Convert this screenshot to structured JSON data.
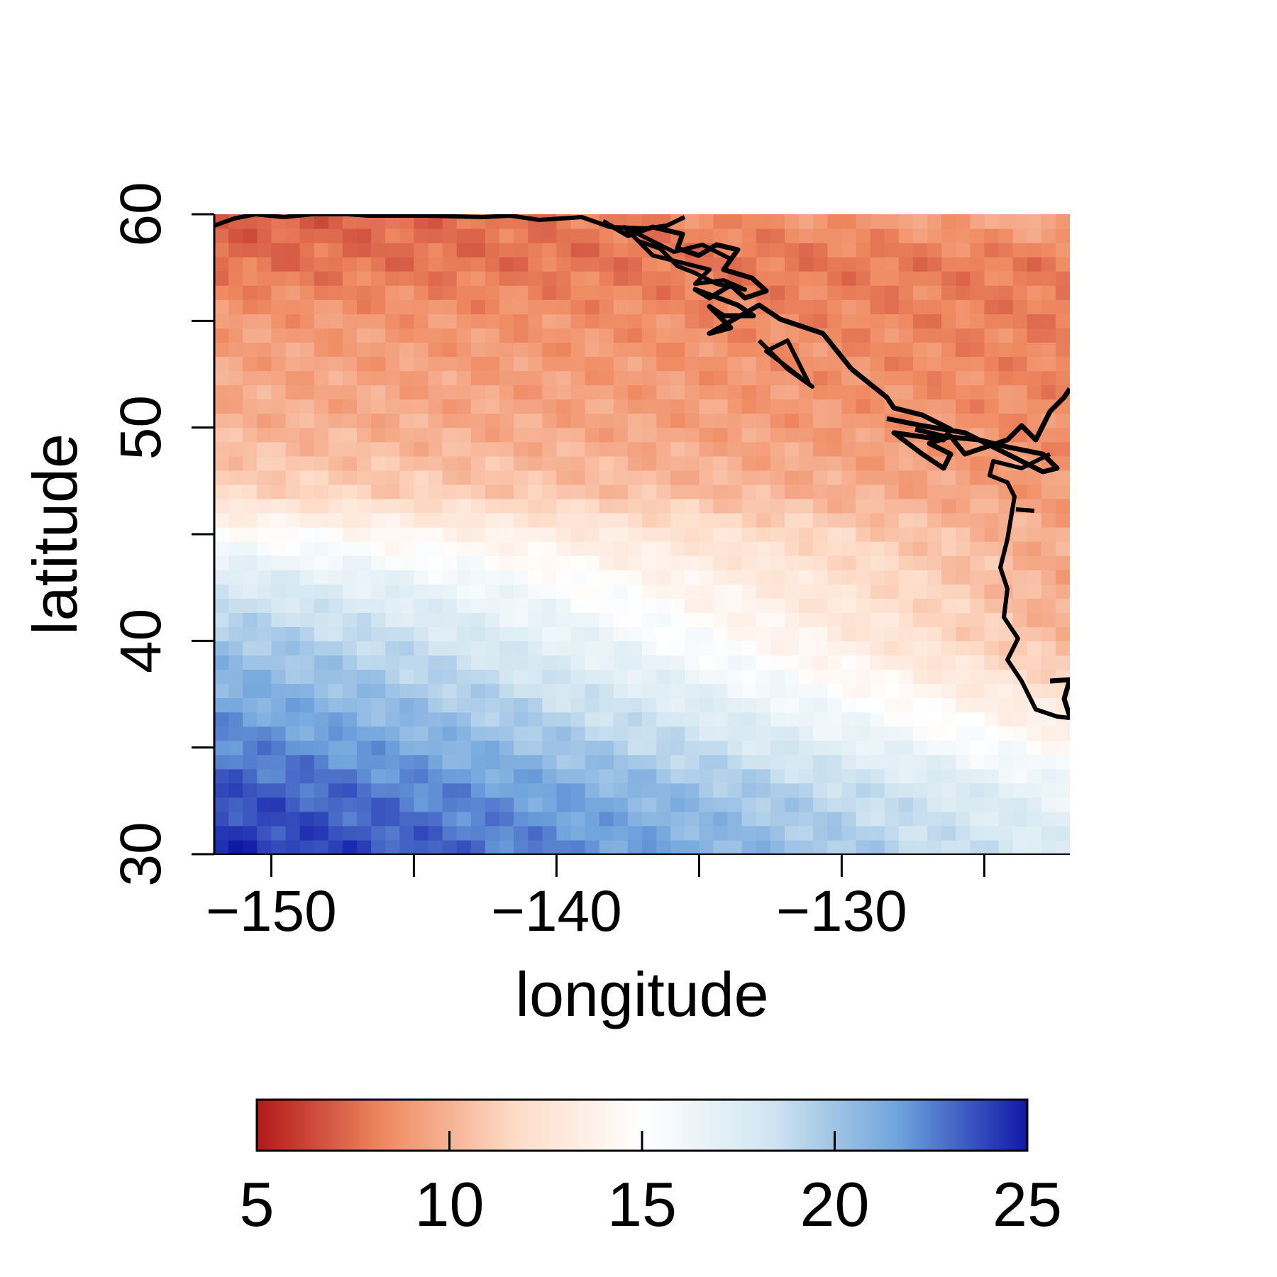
{
  "chart_data": {
    "type": "heatmap",
    "title": "",
    "xlabel": "longitude",
    "ylabel": "latitude",
    "xlim": [
      -152,
      -122
    ],
    "ylim": [
      30,
      60
    ],
    "x_ticks": [
      -150,
      -145,
      -140,
      -135,
      -130,
      -125
    ],
    "x_tick_labels": [
      "−150",
      "−140",
      "−130"
    ],
    "x_tick_label_values": [
      -150,
      -140,
      -130
    ],
    "y_ticks": [
      30,
      35,
      40,
      45,
      50,
      55,
      60
    ],
    "y_tick_labels": [
      "30",
      "40",
      "50",
      "60"
    ],
    "y_tick_label_values": [
      30,
      40,
      50,
      60
    ],
    "grid": false,
    "colorbar": {
      "placement": "bottom",
      "range": [
        5,
        25
      ],
      "ticks": [
        5,
        10,
        15,
        20,
        25
      ],
      "tick_labels": [
        "5",
        "10",
        "15",
        "20",
        "25"
      ],
      "colors": [
        "#b2181b",
        "#ef8a62",
        "#fddbc7",
        "#ffffff",
        "#d1e5f0",
        "#6fa3dc",
        "#1018a8"
      ]
    },
    "field_description_values": {
      "lat_nodes": [
        30,
        33,
        36,
        40,
        43,
        45,
        47,
        50,
        55,
        58,
        60
      ],
      "values_west_lon_-152": [
        24.5,
        23.5,
        22,
        20,
        17.5,
        15,
        11.5,
        10,
        9,
        7.5,
        7
      ],
      "values_east_lon_-122": [
        17.5,
        16.5,
        13.5,
        10,
        9.5,
        9.5,
        9,
        8.5,
        8,
        8,
        10
      ]
    },
    "coastline_color": "#000000"
  }
}
